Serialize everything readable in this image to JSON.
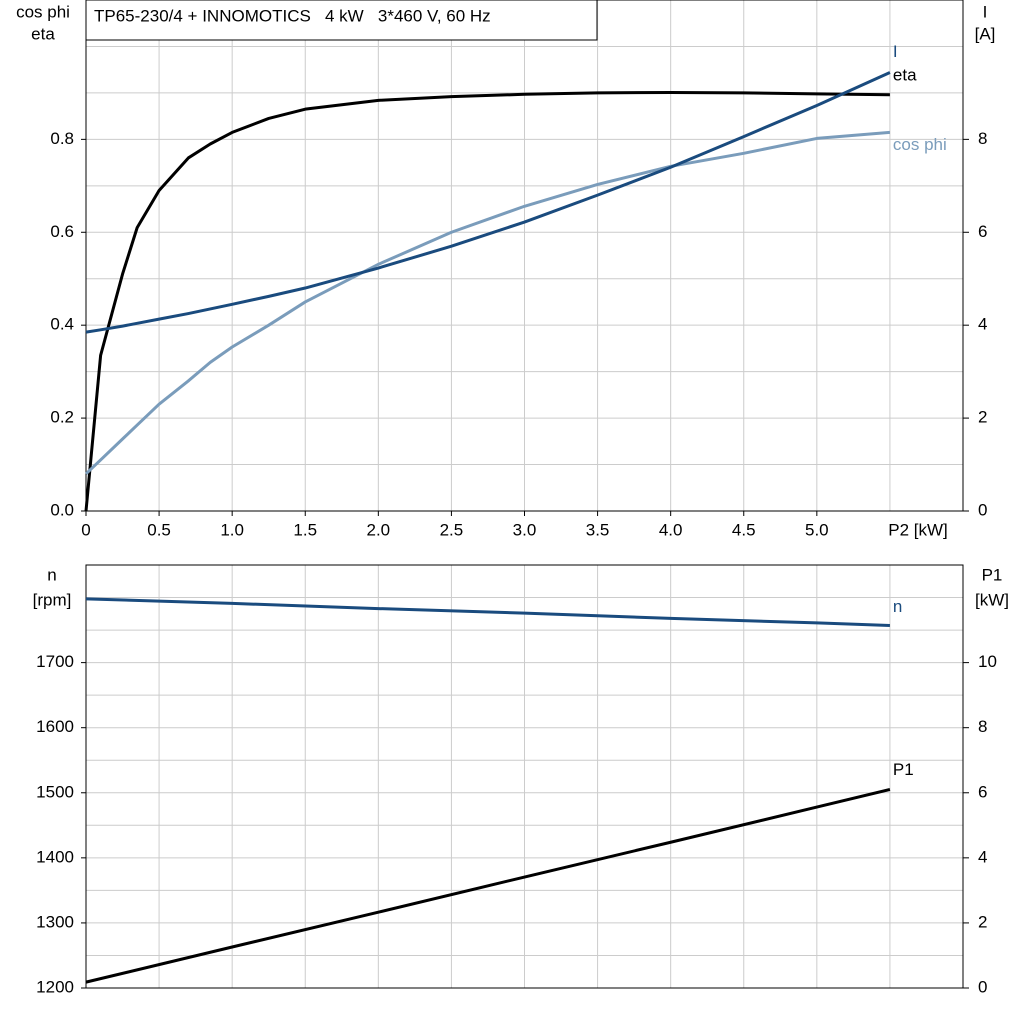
{
  "chart_data": [
    {
      "type": "line",
      "title": "TP65-230/4 + INNOMOTICS   4 kW   3*460 V, 60 Hz",
      "xlabel": "P2 [kW]",
      "ylabel": [
        "cos phi",
        "eta"
      ],
      "y2label": [
        "I",
        "[A]"
      ],
      "x": [
        0,
        0.1,
        0.25,
        0.35,
        0.5,
        0.7,
        0.85,
        1.0,
        1.25,
        1.5,
        2.0,
        2.5,
        3.0,
        3.5,
        4.0,
        4.5,
        5.0,
        5.5
      ],
      "xlim": [
        0,
        6
      ],
      "xticks": [
        0,
        {
          "value": 0.5,
          "label": "0.5"
        },
        {
          "value": 1,
          "label": "1.0"
        },
        {
          "value": 1.5,
          "label": "1.5"
        },
        {
          "value": 2,
          "label": "2.0"
        },
        {
          "value": 2.5,
          "label": "2.5"
        },
        {
          "value": 3,
          "label": "3.0"
        },
        {
          "value": 3.5,
          "label": "3.5"
        },
        {
          "value": 4,
          "label": "4.0"
        },
        {
          "value": 4.5,
          "label": "4.5"
        },
        {
          "value": 5,
          "label": "5.0"
        }
      ],
      "ylim": [
        0,
        1.1
      ],
      "yticks": [
        {
          "value": 0,
          "label": "0.0"
        },
        0.2,
        0.4,
        0.6,
        0.8
      ],
      "y2lim": [
        0,
        11
      ],
      "y2ticks": [
        0,
        2,
        4,
        6,
        8
      ],
      "grid": true,
      "series": [
        {
          "name": "eta",
          "color": "#000000",
          "values": [
            0,
            0.335,
            0.51,
            0.61,
            0.69,
            0.76,
            0.79,
            0.815,
            0.845,
            0.865,
            0.884,
            0.892,
            0.897,
            0.9,
            0.901,
            0.9,
            0.898,
            0.896
          ]
        },
        {
          "name": "cos phi",
          "color": "#7a9cbb",
          "values": [
            0.08,
            0.11,
            0.155,
            0.185,
            0.23,
            0.28,
            0.32,
            0.353,
            0.4,
            0.45,
            0.531,
            0.6,
            0.656,
            0.703,
            0.742,
            0.77,
            0.802,
            0.815
          ]
        },
        {
          "name": "I",
          "color": "#1a4b7e",
          "axis": "y2",
          "values": [
            3.85,
            3.9,
            3.98,
            4.04,
            4.13,
            4.25,
            4.35,
            4.45,
            4.62,
            4.8,
            5.23,
            5.7,
            6.22,
            6.8,
            7.4,
            8.06,
            8.73,
            9.44
          ]
        }
      ]
    },
    {
      "type": "line",
      "ylabel": [
        "n",
        "[rpm]"
      ],
      "y2label": [
        "P1",
        "[kW]"
      ],
      "x": [
        0,
        1,
        2,
        3,
        4,
        5,
        5.5
      ],
      "xlim": [
        0,
        6
      ],
      "ylim": [
        1200,
        1850
      ],
      "yticks": [
        1200,
        1300,
        1400,
        1500,
        1600,
        1700
      ],
      "y2lim": [
        0,
        13
      ],
      "y2ticks": [
        0,
        2,
        4,
        6,
        8,
        10
      ],
      "grid": true,
      "series": [
        {
          "name": "n",
          "color": "#1a4b7e",
          "values": [
            1798,
            1791,
            1783,
            1776,
            1768,
            1761,
            1757
          ]
        },
        {
          "name": "P1",
          "color": "#000000",
          "axis": "y2",
          "values": [
            0.18,
            1.26,
            2.33,
            3.41,
            4.48,
            5.56,
            6.1
          ]
        }
      ]
    }
  ]
}
